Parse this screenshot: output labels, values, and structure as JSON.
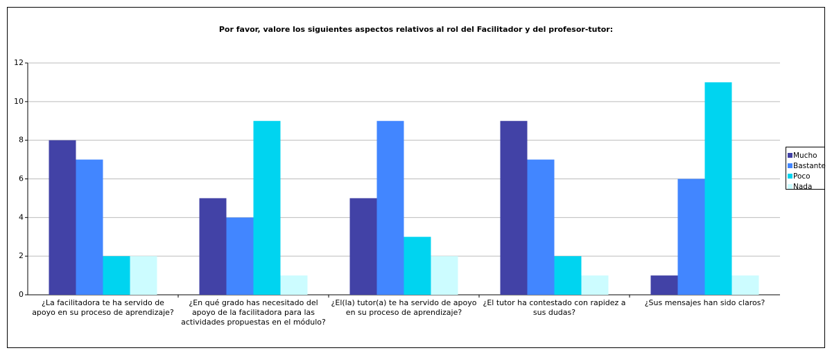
{
  "chart_data": {
    "type": "bar",
    "title": "Por favor, valore los siguientes aspectos relativos al rol del Facilitador y del profesor-tutor:",
    "categories": [
      "¿La facilitadora te ha servido de apoyo en su proceso de aprendizaje?",
      "¿En qué grado has necesitado del apoyo de la facilitadora para las actividades propuestas en el módulo?",
      "¿El(la) tutor(a) te ha servido de apoyo en su proceso de aprendizaje?",
      "¿El tutor ha contestado con rapidez a sus dudas?",
      "¿Sus mensajes han sido claros?"
    ],
    "series": [
      {
        "name": "Mucho",
        "color": "#4242a6",
        "values": [
          8,
          5,
          5,
          9,
          1
        ]
      },
      {
        "name": "Bastante",
        "color": "#4286ff",
        "values": [
          7,
          4,
          9,
          7,
          6
        ]
      },
      {
        "name": "Poco",
        "color": "#00d4f0",
        "values": [
          2,
          9,
          3,
          2,
          11
        ]
      },
      {
        "name": "Nada",
        "color": "#ccfcff",
        "values": [
          2,
          1,
          2,
          1,
          1
        ]
      }
    ],
    "ylim": [
      0,
      12
    ],
    "yticks": [
      0,
      2,
      4,
      6,
      8,
      10,
      12
    ],
    "grid": true,
    "legend": "right"
  }
}
